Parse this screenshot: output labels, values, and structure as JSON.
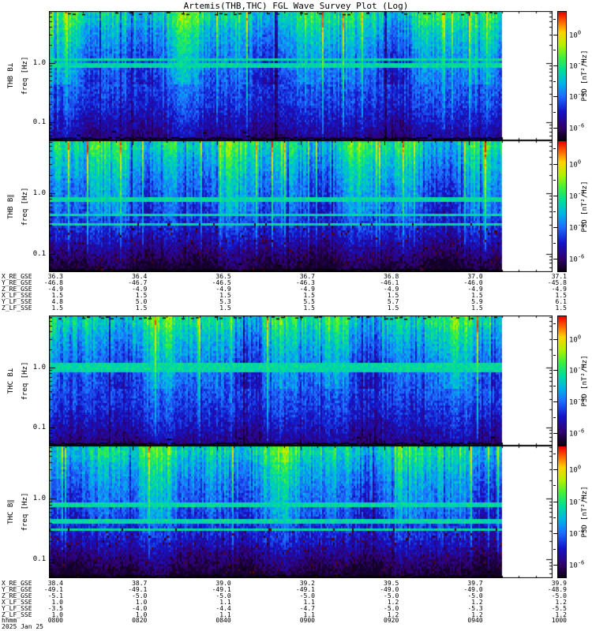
{
  "chart_data": {
    "type": "heatmap",
    "subtype": "wave-power-spectrogram",
    "title": "Artemis(THB,THC) FGL Wave Survey Plot (Log)",
    "date": "2025 Jan 25",
    "time_tick_labels": [
      "0800",
      "0820",
      "0840",
      "0900",
      "0920",
      "0940",
      "1000"
    ],
    "panels": [
      {
        "label": "THB B⊥",
        "ylabel": "freq [Hz]",
        "ytick_labels": [
          "1.0",
          "0.1"
        ],
        "ylim_hz": [
          0.05,
          7.4
        ],
        "yscale": "log",
        "colorbar_label": "PSD [nT²/Hz]",
        "colorbar_ticks": [
          "0",
          "-2",
          "-4",
          "-6"
        ]
      },
      {
        "label": "THB B∥",
        "ylabel": "freq [Hz]",
        "ytick_labels": [
          "1.0",
          "0.1"
        ],
        "ylim_hz": [
          0.05,
          7.4
        ],
        "yscale": "log",
        "colorbar_label": "PSD [nT²/Hz]",
        "colorbar_ticks": [
          "0",
          "-2",
          "-4",
          "-6"
        ]
      },
      {
        "label": "THC B⊥",
        "ylabel": "freq [Hz]",
        "ytick_labels": [
          "1.0",
          "0.1"
        ],
        "ylim_hz": [
          0.05,
          7.4
        ],
        "yscale": "log",
        "colorbar_label": "PSD [nT²/Hz]",
        "colorbar_ticks": [
          "0",
          "-2",
          "-4",
          "-6"
        ]
      },
      {
        "label": "THC B∥",
        "ylabel": "freq [Hz]",
        "ytick_labels": [
          "1.0",
          "0.1"
        ],
        "ylim_hz": [
          0.05,
          7.4
        ],
        "yscale": "log",
        "colorbar_label": "PSD [nT²/Hz]",
        "colorbar_ticks": [
          "0",
          "-2",
          "-4",
          "-6"
        ]
      }
    ],
    "colormap": [
      {
        "t": 0.0,
        "color": "#0a0014"
      },
      {
        "t": 0.1,
        "color": "#31006e"
      },
      {
        "t": 0.22,
        "color": "#1414c8"
      },
      {
        "t": 0.34,
        "color": "#1e6eff"
      },
      {
        "t": 0.44,
        "color": "#00b4e6"
      },
      {
        "t": 0.54,
        "color": "#00dc9b"
      },
      {
        "t": 0.64,
        "color": "#3cf03c"
      },
      {
        "t": 0.74,
        "color": "#b4f000"
      },
      {
        "t": 0.84,
        "color": "#ffd200"
      },
      {
        "t": 0.92,
        "color": "#ff6400"
      },
      {
        "t": 1.0,
        "color": "#e60000"
      }
    ],
    "ephemeris": {
      "blocks": [
        {
          "probe": "THB",
          "rows": [
            {
              "label": "X_RE_GSE",
              "values": [
                "36.3",
                "36.4",
                "36.5",
                "36.7",
                "36.8",
                "37.0",
                "37.1"
              ]
            },
            {
              "label": "Y_RE_GSE",
              "values": [
                "-46.8",
                "-46.7",
                "-46.5",
                "-46.3",
                "-46.1",
                "-46.0",
                "-45.8"
              ]
            },
            {
              "label": "Z_RE_GSE",
              "values": [
                "-4.9",
                "-4.9",
                "-4.9",
                "-4.9",
                "-4.9",
                "-4.9",
                "-4.9"
              ]
            },
            {
              "label": "X_LF_SSE",
              "values": [
                "1.5",
                "1.5",
                "1.5",
                "1.5",
                "1.5",
                "1.5",
                "1.5"
              ]
            },
            {
              "label": "Y_LF_SSE",
              "values": [
                "4.8",
                "5.0",
                "5.3",
                "5.5",
                "5.7",
                "5.9",
                "6.1"
              ]
            },
            {
              "label": "Z_LF_SSE",
              "values": [
                "1.5",
                "1.5",
                "1.5",
                "1.5",
                "1.5",
                "1.5",
                "1.5"
              ]
            }
          ]
        },
        {
          "probe": "THC",
          "rows": [
            {
              "label": "X_RE_GSE",
              "values": [
                "38.4",
                "38.7",
                "39.0",
                "39.2",
                "39.5",
                "39.7",
                "39.9"
              ]
            },
            {
              "label": "Y_RE_GSE",
              "values": [
                "-49.1",
                "-49.1",
                "-49.1",
                "-49.1",
                "-49.0",
                "-49.0",
                "-48.9"
              ]
            },
            {
              "label": "Z_RE_GSE",
              "values": [
                "-5.1",
                "-5.0",
                "-5.0",
                "-5.0",
                "-5.0",
                "-5.0",
                "-5.0"
              ]
            },
            {
              "label": "X_LF_SSE",
              "values": [
                "1.0",
                "1.0",
                "1.1",
                "1.1",
                "1.2",
                "1.2",
                "1.2"
              ]
            },
            {
              "label": "Y_LF_SSE",
              "values": [
                "-3.5",
                "-4.0",
                "-4.4",
                "-4.7",
                "-5.0",
                "-5.3",
                "-5.5"
              ]
            },
            {
              "label": "Z_LF_SSE",
              "values": [
                "1.0",
                "1.0",
                "1.1",
                "1.1",
                "1.2",
                "1.2",
                "1.2"
              ]
            }
          ],
          "time_row": {
            "label": "hhmm",
            "values": [
              "0800",
              "0820",
              "0840",
              "0900",
              "0920",
              "0940",
              "1000"
            ]
          },
          "date_label": "2025 Jan 25"
        }
      ]
    }
  }
}
